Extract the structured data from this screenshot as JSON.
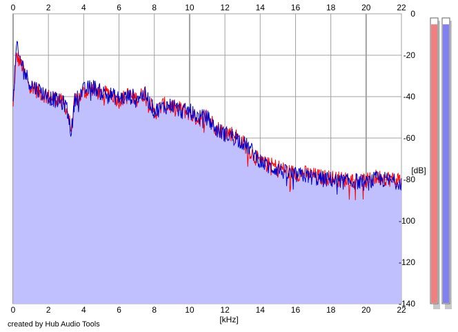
{
  "credit": "created by Hub Audio Tools",
  "colors": {
    "fill": "#c0c0ff",
    "left_channel": "#ff0000",
    "right_channel": "#0000cc",
    "grid": "#a0a0a0",
    "meter_left": "#f08080",
    "meter_right": "#8080f0"
  },
  "meters": {
    "left_level_fraction": 0.98,
    "right_level_fraction": 0.98
  },
  "chart_data": {
    "type": "line",
    "title": "",
    "xlabel": "[kHz]",
    "ylabel": "[dB]",
    "xlim": [
      0,
      22
    ],
    "ylim": [
      -140,
      0
    ],
    "grid": true,
    "x_ticks": [
      "0",
      "2",
      "4",
      "6",
      "8",
      "10",
      "12",
      "14",
      "16",
      "18",
      "20",
      "22"
    ],
    "y_ticks": [
      "0",
      "-20",
      "-40",
      "-60",
      "-80",
      "-100",
      "-120",
      "-140"
    ],
    "series": [
      {
        "channel": "left",
        "x": [
          0,
          0.1,
          0.2,
          0.3,
          0.5,
          0.7,
          1.0,
          1.5,
          2.0,
          2.5,
          3.0,
          3.3,
          3.5,
          4.0,
          4.5,
          5.0,
          5.5,
          6.0,
          6.5,
          7.0,
          7.5,
          8.0,
          8.5,
          9.0,
          9.5,
          10.0,
          10.5,
          11.0,
          11.5,
          12.0,
          12.5,
          13.0,
          13.5,
          14.0,
          14.5,
          15.0,
          15.5,
          16.0,
          16.5,
          17.0,
          17.5,
          18.0,
          18.5,
          19.0,
          19.5,
          20.0,
          20.5,
          21.0,
          21.5,
          22.0
        ],
        "values": [
          -46,
          -30,
          -20,
          -22,
          -25,
          -30,
          -35,
          -38,
          -40,
          -41,
          -45,
          -56,
          -42,
          -38,
          -36,
          -39,
          -38,
          -42,
          -39,
          -41,
          -38,
          -48,
          -44,
          -45,
          -46,
          -48,
          -51,
          -49,
          -55,
          -57,
          -58,
          -62,
          -67,
          -72,
          -73,
          -74,
          -76,
          -77,
          -77,
          -78,
          -79,
          -79,
          -80,
          -80,
          -80,
          -81,
          -79,
          -79,
          -80,
          -80
        ]
      },
      {
        "channel": "right",
        "x": [
          0,
          0.1,
          0.2,
          0.3,
          0.5,
          0.7,
          1.0,
          1.5,
          2.0,
          2.5,
          3.0,
          3.3,
          3.5,
          4.0,
          4.5,
          5.0,
          5.5,
          6.0,
          6.5,
          7.0,
          7.5,
          8.0,
          8.5,
          9.0,
          9.5,
          10.0,
          10.5,
          11.0,
          11.5,
          12.0,
          12.5,
          13.0,
          13.5,
          14.0,
          14.5,
          15.0,
          15.5,
          16.0,
          16.5,
          17.0,
          17.5,
          18.0,
          18.5,
          19.0,
          19.5,
          20.0,
          20.5,
          21.0,
          21.5,
          22.0
        ],
        "values": [
          -44,
          -28,
          -15,
          -20,
          -24,
          -29,
          -34,
          -37,
          -40,
          -42,
          -44,
          -57,
          -41,
          -37,
          -35,
          -38,
          -39,
          -41,
          -40,
          -40,
          -39,
          -47,
          -45,
          -44,
          -47,
          -47,
          -50,
          -50,
          -56,
          -58,
          -59,
          -62,
          -66,
          -71,
          -74,
          -75,
          -77,
          -78,
          -78,
          -79,
          -80,
          -80,
          -81,
          -81,
          -81,
          -82,
          -80,
          -80,
          -81,
          -81
        ]
      }
    ]
  }
}
